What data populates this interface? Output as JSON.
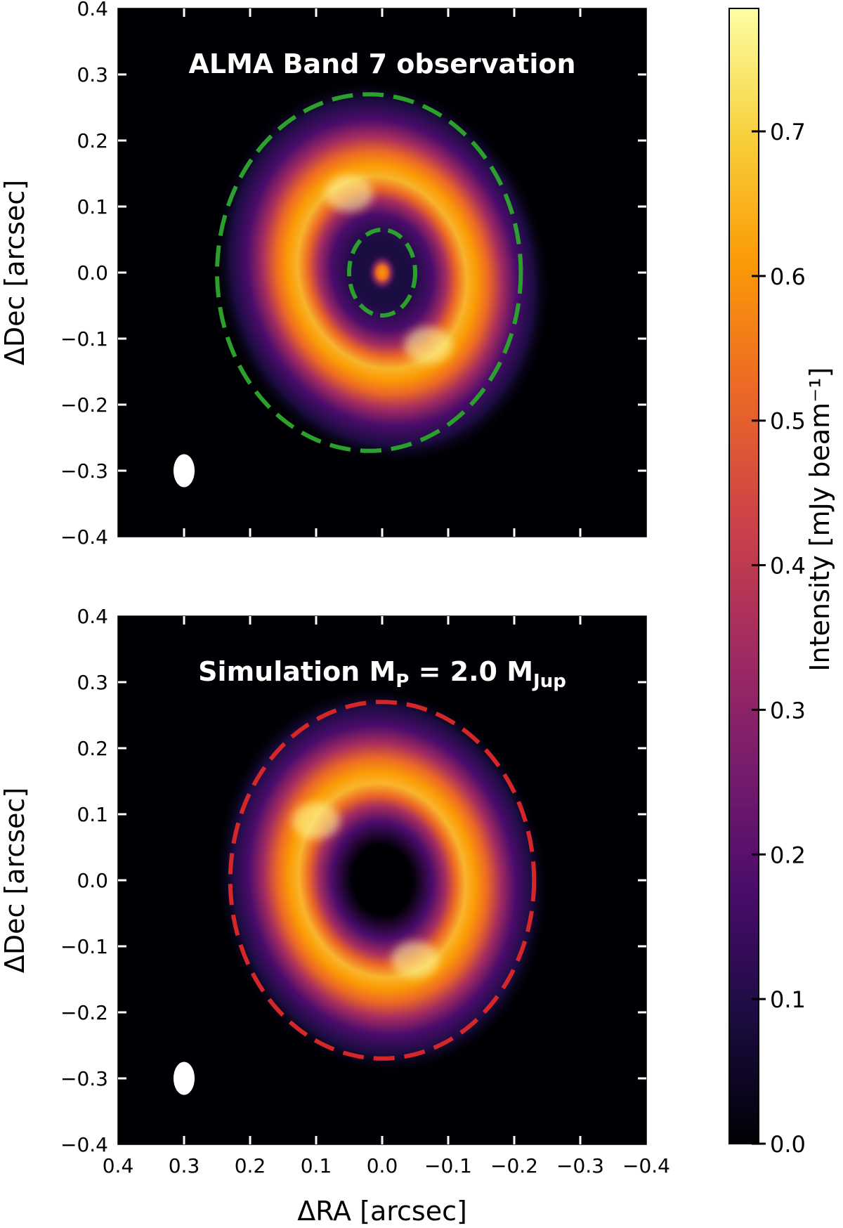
{
  "chart_data": [
    {
      "type": "heatmap",
      "title": "ALMA Band 7 observation",
      "xlabel": "ΔRA  [arcsec]",
      "ylabel": "ΔDec  [arcsec]",
      "xlim": [
        0.4,
        -0.4
      ],
      "ylim": [
        -0.4,
        0.4
      ],
      "x_ticks": [
        0.4,
        0.3,
        0.2,
        0.1,
        0.0,
        -0.1,
        -0.2,
        -0.3,
        -0.4
      ],
      "y_ticks": [
        0.4,
        0.3,
        0.2,
        0.1,
        0.0,
        -0.1,
        -0.2,
        -0.3,
        -0.4
      ],
      "x_tick_labels": [
        "0.4",
        "0.3",
        "0.2",
        "0.1",
        "0.0",
        "−0.1",
        "−0.2",
        "−0.3",
        "−0.4"
      ],
      "y_tick_labels": [
        "0.4",
        "0.3",
        "0.2",
        "0.1",
        "0.0",
        "−0.1",
        "−0.2",
        "−0.3",
        "−0.4"
      ],
      "show_x_tick_labels": false,
      "show_x_label": false,
      "ring_peak_radius_arcsec": 0.13,
      "central_source": true,
      "outer_ellipse": {
        "color": "#2ca02c",
        "center": [
          0.02,
          0.0
        ],
        "semi_axes": [
          0.23,
          0.27
        ]
      },
      "inner_ellipse": {
        "color": "#2ca02c",
        "center": [
          0.0,
          0.0
        ],
        "semi_axes": [
          0.05,
          0.065
        ]
      },
      "beam": {
        "center": [
          0.3,
          -0.3
        ],
        "semi_axes": [
          0.016,
          0.025
        ],
        "color": "#ffffff"
      }
    },
    {
      "type": "heatmap",
      "title": "Simulation M<sub>P</sub> = 2.0 M<sub>Jup</sub>",
      "title_parts": [
        "Simulation M",
        "P",
        " = 2.0 M",
        "Jup"
      ],
      "xlabel": "ΔRA  [arcsec]",
      "ylabel": "ΔDec  [arcsec]",
      "xlim": [
        0.4,
        -0.4
      ],
      "ylim": [
        -0.4,
        0.4
      ],
      "x_ticks": [
        0.4,
        0.3,
        0.2,
        0.1,
        0.0,
        -0.1,
        -0.2,
        -0.3,
        -0.4
      ],
      "y_ticks": [
        0.4,
        0.3,
        0.2,
        0.1,
        0.0,
        -0.1,
        -0.2,
        -0.3,
        -0.4
      ],
      "x_tick_labels": [
        "0.4",
        "0.3",
        "0.2",
        "0.1",
        "0.0",
        "−0.1",
        "−0.2",
        "−0.3",
        "−0.4"
      ],
      "y_tick_labels": [
        "0.4",
        "0.3",
        "0.2",
        "0.1",
        "0.0",
        "−0.1",
        "−0.2",
        "−0.3",
        "−0.4"
      ],
      "show_x_tick_labels": true,
      "show_x_label": true,
      "ring_peak_radius_arcsec": 0.13,
      "central_source": false,
      "outer_ellipse": {
        "color": "#d62728",
        "center": [
          0.0,
          0.0
        ],
        "semi_axes": [
          0.23,
          0.27
        ]
      },
      "beam": {
        "center": [
          0.3,
          -0.3
        ],
        "semi_axes": [
          0.016,
          0.025
        ],
        "color": "#ffffff"
      }
    }
  ],
  "colorbar": {
    "label": "Intensity [mJy beam⁻¹]",
    "colormap": "inferno",
    "range": [
      0.0,
      0.785
    ],
    "ticks": [
      0.0,
      0.1,
      0.2,
      0.3,
      0.4,
      0.5,
      0.6,
      0.7
    ],
    "tick_labels": [
      "0.0",
      "0.1",
      "0.2",
      "0.3",
      "0.4",
      "0.5",
      "0.6",
      "0.7"
    ]
  },
  "colors": {
    "inferno": [
      "#000004",
      "#1b0c41",
      "#4a0c6b",
      "#781c6d",
      "#a52c60",
      "#cf4446",
      "#ed6925",
      "#fb9b06",
      "#f7d13d",
      "#fcffa4"
    ]
  }
}
